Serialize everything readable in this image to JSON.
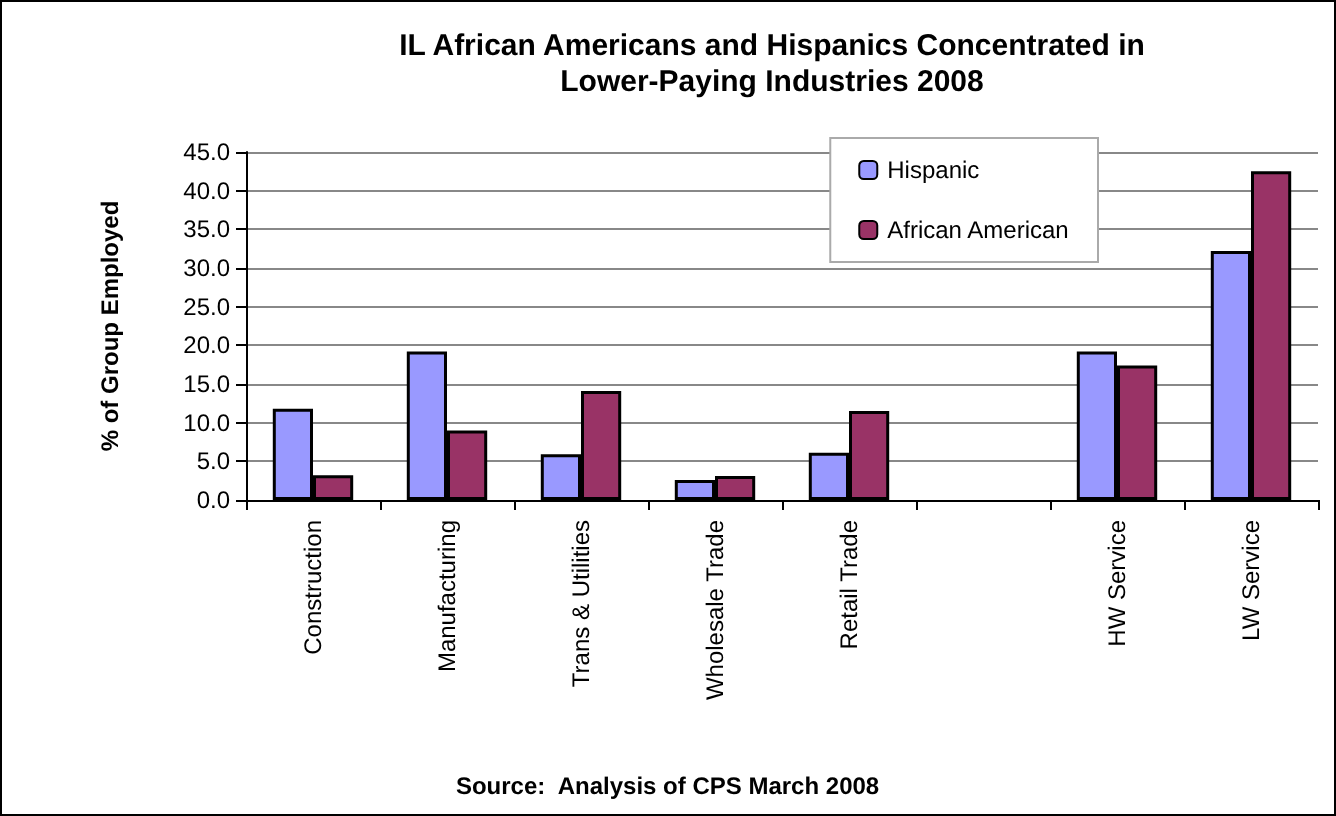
{
  "chart_data": {
    "type": "bar",
    "title": "IL African Americans and Hispanics Concentrated in\nLower-Paying Industries 2008",
    "ylabel": "% of Group Employed",
    "annotations": [
      "Source:  Analysis of CPS March 2008"
    ],
    "categories": [
      "Construction",
      "Manufacturing",
      "Trans & Utilities",
      "Wholesale Trade",
      "Retail Trade",
      null,
      "HW Service",
      "LW Service"
    ],
    "series": [
      {
        "name": "Hispanic",
        "color": "#9999ff",
        "values": [
          11.8,
          19.2,
          5.9,
          2.6,
          6.1,
          null,
          19.2,
          32.2
        ]
      },
      {
        "name": "African American",
        "color": "#993366",
        "values": [
          3.2,
          9.0,
          14.1,
          3.1,
          11.5,
          null,
          17.4,
          42.5
        ]
      }
    ],
    "ylim": [
      0,
      45
    ],
    "yticks": [
      {
        "value": 0,
        "label": "0.0"
      },
      {
        "value": 5,
        "label": "5.0"
      },
      {
        "value": 10,
        "label": "10.0"
      },
      {
        "value": 15,
        "label": "15.0"
      },
      {
        "value": 20,
        "label": "20.0"
      },
      {
        "value": 25,
        "label": "25.0"
      },
      {
        "value": 30,
        "label": "30.0"
      },
      {
        "value": 35,
        "label": "35.0"
      },
      {
        "value": 40,
        "label": "40.0"
      },
      {
        "value": 45,
        "label": "45.0"
      }
    ],
    "grid": "y",
    "legend": "top right"
  }
}
